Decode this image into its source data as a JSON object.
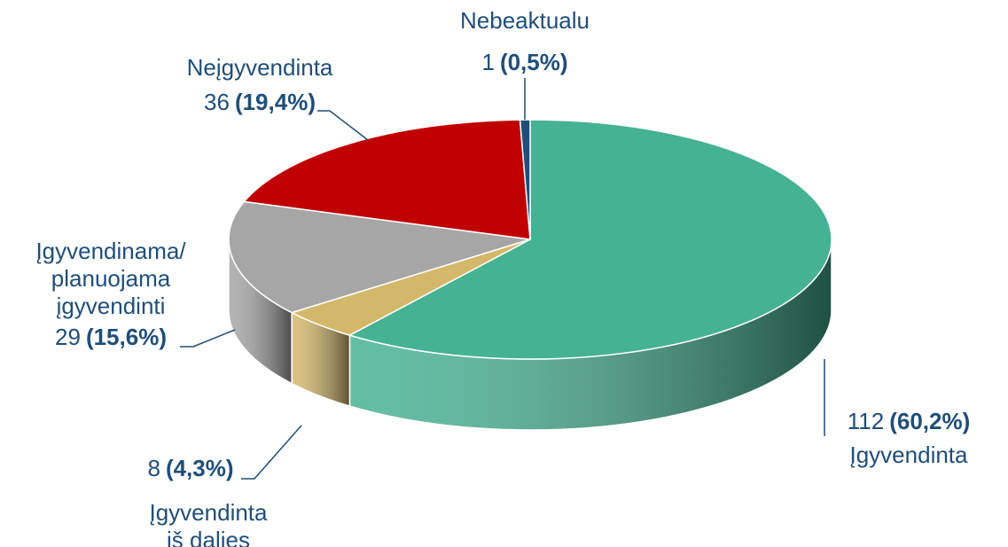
{
  "chart_data": {
    "type": "pie3d",
    "categories": [
      [
        "Įgyvendinta"
      ],
      [
        "Įgyvendinta",
        "iš dalies"
      ],
      [
        "Įgyvendinama/",
        "planuojama",
        "įgyvendinti"
      ],
      [
        "Neįgyvendinta"
      ],
      [
        "Nebeaktualu"
      ]
    ],
    "values": [
      112,
      8,
      29,
      36,
      1
    ],
    "percentages": [
      60.2,
      4.3,
      15.6,
      19.4,
      0.5
    ],
    "percentage_labels": [
      "(60,2%)",
      "(4,3%)",
      "(15,6%)",
      "(19,4%)",
      "(0,5%)"
    ],
    "colors": [
      "#45b293",
      "#d4b86a",
      "#a6a6a6",
      "#c00000",
      "#1f4e79"
    ]
  }
}
